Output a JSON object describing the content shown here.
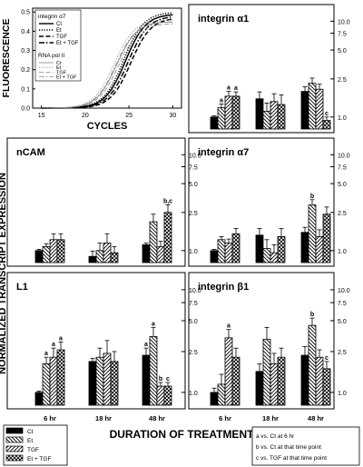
{
  "chart_data": {
    "type": "bar",
    "ylabel_left_top": "FLUORESCENCE",
    "ylabel_left_main": "NORMALIZED TRANSCRIPT EXPRESSION",
    "xlabel_main": "DURATION OF TREATMENT",
    "groups": [
      "6 hr",
      "18 hr",
      "48 hr"
    ],
    "series_names": [
      "Ct",
      "Et",
      "TGF",
      "Et + TGF"
    ],
    "series_colors": [
      "#000000",
      "#ffffff",
      "#ffffff",
      "#ffffff"
    ],
    "series_hatch": [
      "solid",
      "back",
      "fwd",
      "cross"
    ],
    "bar_ytick_labels": [
      "1.0",
      "2.5",
      "5.0",
      "7.5",
      "10.0"
    ],
    "bar_yticks": [
      1.0,
      2.5,
      5.0,
      7.5,
      10.0
    ],
    "bar_ylim": [
      0.75,
      12
    ],
    "yscale": "log",
    "sig_legend": [
      "a vs. Ct at 6 hr",
      "b vs. Ct at that time point",
      "c vs. TGF at that time point"
    ],
    "amplification": {
      "xlabel": "CYCLES",
      "xlim": [
        14,
        31
      ],
      "ylim": [
        0,
        0.52
      ],
      "xtick_labels": [
        "15",
        "20",
        "25",
        "30"
      ],
      "xticks": [
        15,
        20,
        25,
        30
      ],
      "ytick_labels": [
        "0.0",
        "0.1",
        "0.2",
        "0.3",
        "0.4",
        "0.5"
      ],
      "yticks": [
        0,
        0.1,
        0.2,
        0.3,
        0.4,
        0.5
      ],
      "legend_title1": "integrin α7",
      "legend_title2": "RNA pol II",
      "legend_entries": [
        "Ct",
        "Et",
        "TGF",
        "Et + TGF"
      ],
      "curves": [
        {
          "group": "integrin α7",
          "name": "Ct",
          "style": "solid",
          "weight": "heavy",
          "midpoint": 24.6,
          "plateau": 0.49
        },
        {
          "group": "integrin α7",
          "name": "Et",
          "style": "dotted",
          "weight": "heavy",
          "midpoint": 24.4,
          "plateau": 0.5
        },
        {
          "group": "integrin α7",
          "name": "TGF",
          "style": "dashed",
          "weight": "heavy",
          "midpoint": 25.2,
          "plateau": 0.47
        },
        {
          "group": "integrin α7",
          "name": "Et + TGF",
          "style": "dashdot",
          "weight": "heavy",
          "midpoint": 24.9,
          "plateau": 0.48
        },
        {
          "group": "RNA pol II",
          "name": "Ct",
          "style": "solid",
          "weight": "light",
          "midpoint": 23.6,
          "plateau": 0.45
        },
        {
          "group": "RNA pol II",
          "name": "Et",
          "style": "dotted",
          "weight": "light",
          "midpoint": 23.3,
          "plateau": 0.46
        },
        {
          "group": "RNA pol II",
          "name": "TGF",
          "style": "dashed",
          "weight": "light",
          "midpoint": 23.8,
          "plateau": 0.44
        },
        {
          "group": "RNA pol II",
          "name": "Et + TGF",
          "style": "dashdot",
          "weight": "light",
          "midpoint": 23.5,
          "plateau": 0.45
        }
      ]
    },
    "panels": [
      {
        "title": "integrin α1",
        "values": [
          [
            1.0,
            1.25,
            1.65,
            1.65
          ],
          [
            1.55,
            1.15,
            1.45,
            1.35
          ],
          [
            1.85,
            2.25,
            1.95,
            0.92
          ]
        ],
        "errors": [
          [
            0.03,
            0.12,
            0.2,
            0.18
          ],
          [
            0.28,
            0.25,
            0.3,
            0.35
          ],
          [
            0.22,
            0.3,
            0.25,
            0.08
          ]
        ],
        "labels": [
          [
            "",
            "a",
            "a",
            "a"
          ],
          [
            "",
            "",
            "",
            ""
          ],
          [
            "",
            "",
            "",
            "c"
          ]
        ]
      },
      {
        "title": "nCAM",
        "values": [
          [
            1.0,
            1.1,
            1.3,
            1.3
          ],
          [
            0.87,
            1.0,
            1.2,
            0.95
          ],
          [
            1.15,
            2.0,
            1.1,
            2.5
          ]
        ],
        "errors": [
          [
            0.03,
            0.08,
            0.2,
            0.2
          ],
          [
            0.12,
            0.2,
            0.3,
            0.15
          ],
          [
            0.05,
            0.4,
            0.15,
            0.5
          ]
        ],
        "labels": [
          [
            "",
            "",
            "",
            ""
          ],
          [
            "",
            "",
            "",
            ""
          ],
          [
            "",
            "",
            "",
            "b,c"
          ]
        ]
      },
      {
        "title": "integrin α7",
        "values": [
          [
            1.0,
            1.3,
            1.2,
            1.5
          ],
          [
            1.45,
            1.05,
            0.95,
            1.4
          ],
          [
            1.55,
            3.0,
            1.4,
            2.4
          ]
        ],
        "errors": [
          [
            0.03,
            0.1,
            0.12,
            0.2
          ],
          [
            0.25,
            0.25,
            0.2,
            0.3
          ],
          [
            0.2,
            0.4,
            0.25,
            0.45
          ]
        ],
        "labels": [
          [
            "",
            "",
            "",
            ""
          ],
          [
            "",
            "",
            "",
            ""
          ],
          [
            "",
            "b",
            "",
            ""
          ]
        ]
      },
      {
        "title": "L1",
        "values": [
          [
            1.0,
            1.9,
            2.2,
            2.6
          ],
          [
            2.0,
            2.2,
            2.4,
            2.0
          ],
          [
            2.3,
            3.5,
            1.15,
            1.15
          ]
        ],
        "errors": [
          [
            0.03,
            0.3,
            0.5,
            0.5
          ],
          [
            0.15,
            0.5,
            0.8,
            0.5
          ],
          [
            0.4,
            0.8,
            0.1,
            0.1
          ]
        ],
        "labels": [
          [
            "",
            "a",
            "a",
            "a"
          ],
          [
            "",
            "",
            "",
            ""
          ],
          [
            "a",
            "a",
            "b",
            "c"
          ]
        ]
      },
      {
        "title": "integrin β1",
        "values": [
          [
            1.0,
            1.2,
            3.4,
            2.2
          ],
          [
            1.6,
            3.3,
            1.9,
            2.2
          ],
          [
            2.3,
            4.5,
            2.2,
            1.7
          ]
        ],
        "errors": [
          [
            0.1,
            0.3,
            0.7,
            0.5
          ],
          [
            0.3,
            1.0,
            0.5,
            0.5
          ],
          [
            0.5,
            0.8,
            0.4,
            0.3
          ]
        ],
        "labels": [
          [
            "",
            "",
            "a",
            ""
          ],
          [
            "",
            "",
            "",
            ""
          ],
          [
            "",
            "b",
            "",
            "c"
          ]
        ]
      }
    ]
  }
}
